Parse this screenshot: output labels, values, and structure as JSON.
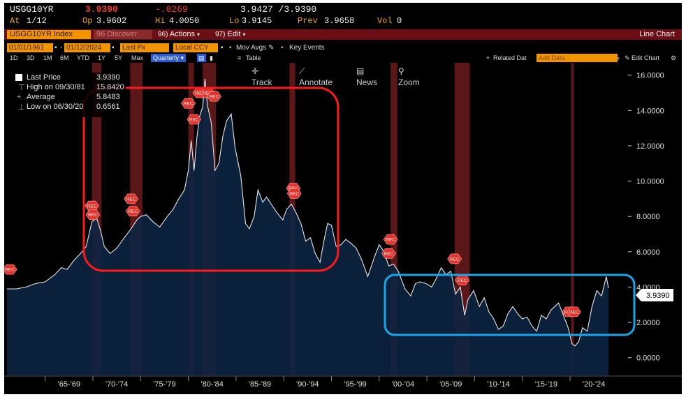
{
  "header": {
    "ticker": "USGG10YR",
    "last": "3.9390",
    "change": "-.0269",
    "bidask": "3.9427 /3.9390",
    "at_label": "At",
    "at_value": "1/12",
    "op_label": "Op",
    "op_value": "3.9602",
    "hi_label": "Hi",
    "hi_value": "4.0050",
    "lo_label": "Lo",
    "lo_value": "3.9145",
    "prev_label": "Prev",
    "prev_value": "3.9658",
    "vol_label": "Vol",
    "vol_value": "0"
  },
  "menubar": {
    "security": "USGG10YR Index",
    "discover_code": "96",
    "discover": "Discover",
    "actions_code": "96)",
    "actions": "Actions",
    "edit_code": "97)",
    "edit": "Edit",
    "chart_type": "Line Chart"
  },
  "settings": {
    "start_date": "01/01/1961",
    "end_date": "01/12/2024",
    "price_field": "Last Px",
    "currency": "Local CCY",
    "mov_avgs": "Mov Avgs",
    "key_events": "Key Events"
  },
  "periods": {
    "items": [
      "1D",
      "3D",
      "1M",
      "6M",
      "YTD",
      "1Y",
      "5Y",
      "Max"
    ],
    "frequency": "Quarterly",
    "table": "Table",
    "related": "Related Dat",
    "add_data": "Add Data",
    "edit_chart": "Edit Chart"
  },
  "tools": {
    "track": "Track",
    "annotate": "Annotate",
    "news": "News",
    "zoom": "Zoom"
  },
  "legend": {
    "last_label": "Last Price",
    "last_value": "3.9390",
    "high_label": "High on 09/30/81",
    "high_value": "15.8420",
    "avg_label": "Average",
    "avg_value": "5.8483",
    "low_label": "Low on 06/30/20",
    "low_value": "0.6561"
  },
  "last_tag": "3.9390",
  "rec_label": "REC",
  "colors": {
    "background": "#000000",
    "area_fill": "#0c2341",
    "line": "#e8e8e8",
    "recession": "#7a1d1f",
    "highlight_red": "#ff1a1a",
    "highlight_blue": "#19a6e8",
    "accent": "#f29400"
  },
  "chart_data": {
    "type": "area",
    "series": [
      {
        "name": "USGG10YR Index",
        "x": [
          1961.0,
          1962.0,
          1963.0,
          1964.0,
          1965.0,
          1966.0,
          1966.7,
          1967.3,
          1968.0,
          1968.7,
          1969.3,
          1969.9,
          1970.4,
          1970.8,
          1971.2,
          1971.8,
          1972.5,
          1973.3,
          1974.0,
          1974.6,
          1975.0,
          1975.6,
          1976.3,
          1977.0,
          1977.8,
          1978.4,
          1979.0,
          1979.6,
          1980.0,
          1980.3,
          1980.6,
          1980.9,
          1981.2,
          1981.5,
          1981.75,
          1982.0,
          1982.4,
          1982.8,
          1983.2,
          1983.6,
          1984.0,
          1984.5,
          1984.9,
          1985.5,
          1986.0,
          1986.4,
          1986.9,
          1987.3,
          1987.8,
          1988.2,
          1988.8,
          1989.3,
          1989.9,
          1990.3,
          1990.8,
          1991.3,
          1991.8,
          1992.3,
          1992.8,
          1993.3,
          1993.8,
          1994.2,
          1994.6,
          1995.0,
          1995.5,
          1996.0,
          1996.5,
          1997.0,
          1997.6,
          1998.2,
          1998.8,
          1999.5,
          2000.0,
          2000.5,
          2001.0,
          2001.5,
          2002.0,
          2002.7,
          2003.3,
          2003.8,
          2004.3,
          2004.9,
          2005.5,
          2006.0,
          2006.5,
          2007.0,
          2007.5,
          2008.0,
          2008.5,
          2008.95,
          2009.3,
          2009.9,
          2010.5,
          2011.0,
          2011.5,
          2012.0,
          2012.5,
          2013.0,
          2013.5,
          2014.0,
          2014.5,
          2015.0,
          2015.5,
          2016.0,
          2016.5,
          2017.0,
          2017.5,
          2018.0,
          2018.8,
          2019.3,
          2019.8,
          2020.2,
          2020.5,
          2020.9,
          2021.3,
          2021.8,
          2022.3,
          2022.8,
          2023.3,
          2023.8,
          2024.03
        ],
        "values": [
          3.9,
          3.9,
          4.0,
          4.2,
          4.3,
          4.7,
          5.1,
          5.0,
          5.5,
          5.9,
          6.3,
          7.7,
          7.9,
          7.2,
          6.3,
          5.9,
          6.2,
          6.8,
          7.3,
          7.8,
          8.0,
          8.1,
          7.7,
          7.4,
          8.0,
          8.4,
          9.0,
          9.5,
          10.6,
          12.3,
          10.6,
          12.5,
          13.7,
          14.2,
          15.8,
          14.3,
          13.3,
          10.6,
          11.0,
          12.5,
          13.4,
          13.8,
          11.9,
          10.3,
          7.6,
          7.3,
          8.0,
          9.5,
          8.8,
          9.1,
          8.6,
          8.2,
          7.8,
          8.4,
          8.7,
          8.2,
          7.6,
          6.6,
          6.8,
          5.9,
          5.4,
          6.6,
          7.6,
          7.5,
          6.3,
          6.4,
          6.7,
          6.5,
          6.2,
          5.5,
          4.6,
          5.7,
          6.4,
          6.0,
          5.2,
          5.3,
          4.9,
          3.9,
          3.5,
          4.2,
          4.3,
          4.2,
          4.0,
          4.5,
          5.1,
          4.7,
          4.9,
          3.6,
          4.0,
          2.4,
          3.3,
          3.8,
          2.9,
          3.4,
          2.6,
          2.2,
          1.6,
          1.8,
          2.5,
          2.9,
          2.5,
          2.2,
          2.3,
          1.8,
          1.5,
          2.4,
          2.2,
          2.7,
          3.1,
          2.4,
          1.7,
          0.8,
          0.66,
          0.9,
          1.7,
          1.5,
          2.9,
          3.8,
          3.5,
          4.6,
          3.939
        ]
      }
    ],
    "x_tick_labels": [
      "'65-'69",
      "'70-'74",
      "'75-'79",
      "'80-'84",
      "'85-'89",
      "'90-'94",
      "'95-'99",
      "'00-'04",
      "'05-'09",
      "'10-'14",
      "'15-'19",
      "'20-'24"
    ],
    "y_ticks": [
      0,
      2,
      4,
      6,
      8,
      10,
      12,
      14,
      16
    ],
    "y_tick_labels": [
      "0.0000",
      "2.0000",
      "4.0000",
      "6.0000",
      "8.0000",
      "10.0000",
      "12.0000",
      "14.0000",
      "16.0000"
    ],
    "xlim": [
      1961.0,
      2026.0
    ],
    "ylim": [
      -1.0,
      16.7
    ],
    "recessions": [
      [
        1969.9,
        1970.9
      ],
      [
        1973.9,
        1975.2
      ],
      [
        1980.0,
        1980.6
      ],
      [
        1981.5,
        1982.9
      ],
      [
        1990.6,
        1991.2
      ],
      [
        2001.2,
        2001.9
      ],
      [
        2007.9,
        2009.5
      ],
      [
        2020.1,
        2020.4
      ]
    ],
    "rec_markers": [
      [
        1961.3,
        5.0
      ],
      [
        1969.9,
        8.6
      ],
      [
        1970.0,
        8.1
      ],
      [
        1974.0,
        9.0
      ],
      [
        1974.2,
        8.3
      ],
      [
        1980.0,
        14.4
      ],
      [
        1980.6,
        13.5
      ],
      [
        1981.2,
        15.0
      ],
      [
        1982.0,
        15.0
      ],
      [
        1982.7,
        14.8
      ],
      [
        1991.0,
        9.6
      ],
      [
        1991.1,
        9.3
      ],
      [
        2001.2,
        6.7
      ],
      [
        2001.0,
        5.9
      ],
      [
        2007.9,
        5.6
      ],
      [
        2008.7,
        4.4
      ],
      [
        2019.9,
        2.6
      ],
      [
        2020.4,
        2.6
      ]
    ],
    "grid": false,
    "legend_position": "top-left"
  }
}
